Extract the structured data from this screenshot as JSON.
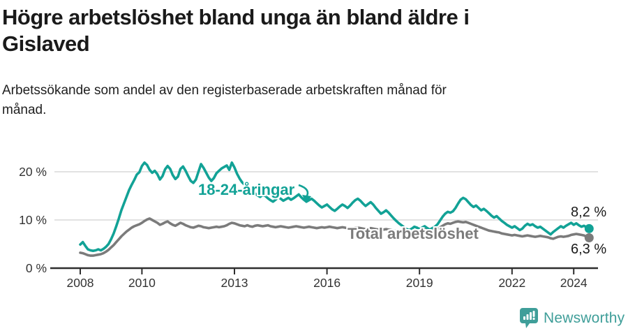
{
  "header": {
    "title_line1": "Högre arbetslöshet bland unga än bland äldre i",
    "title_line2": "Gislaved",
    "subtitle_line1": "Arbetssökande som andel av den registerbaserade arbetskraften månad för",
    "subtitle_line2": "månad."
  },
  "chart_data": {
    "type": "line",
    "title": "Högre arbetslöshet bland unga än bland äldre i Gislaved",
    "subtitle": "Arbetssökande som andel av den registerbaserade arbetskraften månad för månad.",
    "unit": "%",
    "x_start": "2008-01",
    "x_end": "2024-07",
    "x_frequency": "monthly",
    "x_tick_years": [
      2008,
      2010,
      2013,
      2016,
      2019,
      2022,
      2024
    ],
    "x_tick_labels": [
      "2008",
      "2010",
      "2013",
      "2016",
      "2019",
      "2022",
      "2024"
    ],
    "y_ticks": [
      {
        "value": 0,
        "label": "0 %"
      },
      {
        "value": 10,
        "label": "10 %"
      },
      {
        "value": 20,
        "label": "20 %"
      }
    ],
    "ylim": [
      0,
      23.5
    ],
    "grid": "horizontal",
    "legend_position": "inline-labels",
    "colors": {
      "young": "#12a296",
      "total": "#7b7b7b",
      "grid": "#d9d9d9",
      "axis": "#2e2e2e",
      "tick_text": "#333333"
    },
    "series": [
      {
        "name": "18-24-åringar",
        "inline_label": "18-24-åringar",
        "end_label": "8,2 %",
        "end_value": 8.2,
        "color": "#12a296",
        "values": [
          4.9,
          5.4,
          4.6,
          3.9,
          3.7,
          3.6,
          3.7,
          3.9,
          3.7,
          4.0,
          4.4,
          5.0,
          6.0,
          7.2,
          8.7,
          10.3,
          12.0,
          13.4,
          14.8,
          16.2,
          17.3,
          18.3,
          19.4,
          19.9,
          21.2,
          21.9,
          21.4,
          20.4,
          19.8,
          20.2,
          19.5,
          18.4,
          19.1,
          20.5,
          21.2,
          20.6,
          19.3,
          18.5,
          19.0,
          20.6,
          21.1,
          20.2,
          19.1,
          18.1,
          17.7,
          18.4,
          20.0,
          21.6,
          20.8,
          19.8,
          18.8,
          18.1,
          18.7,
          19.7,
          20.2,
          20.7,
          21.0,
          21.3,
          20.4,
          21.9,
          20.9,
          19.6,
          18.6,
          17.8,
          17.3,
          16.8,
          16.3,
          15.9,
          15.5,
          15.1,
          14.8,
          15.2,
          15.0,
          14.5,
          14.1,
          13.8,
          14.2,
          14.7,
          14.4,
          14.0,
          14.3,
          14.6,
          14.2,
          14.5,
          14.9,
          15.3,
          14.7,
          14.2,
          13.8,
          14.1,
          14.4,
          14.0,
          13.5,
          13.0,
          12.6,
          12.9,
          13.2,
          12.7,
          12.2,
          11.9,
          12.3,
          12.8,
          13.2,
          12.9,
          12.5,
          13.0,
          13.6,
          14.1,
          14.4,
          14.0,
          13.4,
          12.9,
          13.3,
          13.7,
          13.2,
          12.5,
          11.9,
          11.3,
          11.6,
          12.0,
          11.5,
          10.9,
          10.3,
          9.8,
          9.3,
          8.9,
          8.5,
          8.1,
          7.9,
          8.2,
          8.6,
          8.4,
          8.1,
          8.4,
          8.7,
          8.3,
          8.0,
          8.3,
          8.6,
          9.1,
          9.9,
          10.7,
          11.3,
          11.7,
          11.5,
          11.8,
          12.5,
          13.4,
          14.2,
          14.6,
          14.3,
          13.7,
          13.1,
          12.7,
          13.0,
          12.5,
          12.0,
          12.3,
          11.9,
          11.4,
          10.9,
          10.5,
          10.8,
          10.3,
          9.8,
          9.4,
          9.0,
          8.7,
          8.4,
          8.7,
          8.3,
          7.9,
          8.2,
          8.8,
          9.2,
          8.9,
          9.1,
          8.7,
          8.4,
          8.6,
          8.2,
          7.8,
          7.4,
          7.0,
          7.5,
          7.9,
          8.3,
          8.7,
          8.4,
          8.8,
          9.1,
          9.4,
          9.0,
          9.3,
          8.9,
          8.6,
          8.8,
          8.5,
          8.2
        ]
      },
      {
        "name": "Total arbetslöshet",
        "inline_label": "Total arbetslöshet",
        "end_label": "6,3 %",
        "end_value": 6.3,
        "color": "#7b7b7b",
        "values": [
          3.2,
          3.1,
          2.9,
          2.7,
          2.6,
          2.6,
          2.7,
          2.8,
          2.9,
          3.1,
          3.4,
          3.8,
          4.3,
          4.8,
          5.4,
          6.0,
          6.6,
          7.1,
          7.6,
          8.0,
          8.4,
          8.7,
          8.9,
          9.1,
          9.4,
          9.8,
          10.1,
          10.3,
          10.0,
          9.7,
          9.4,
          9.0,
          9.2,
          9.5,
          9.7,
          9.3,
          9.0,
          8.8,
          9.1,
          9.4,
          9.2,
          8.9,
          8.7,
          8.5,
          8.4,
          8.6,
          8.8,
          8.7,
          8.5,
          8.4,
          8.3,
          8.4,
          8.5,
          8.6,
          8.5,
          8.6,
          8.7,
          8.9,
          9.2,
          9.4,
          9.3,
          9.1,
          8.9,
          8.8,
          8.7,
          8.9,
          8.7,
          8.6,
          8.8,
          8.9,
          8.8,
          8.7,
          8.8,
          8.9,
          8.7,
          8.6,
          8.5,
          8.6,
          8.7,
          8.6,
          8.5,
          8.4,
          8.5,
          8.6,
          8.7,
          8.6,
          8.5,
          8.4,
          8.5,
          8.6,
          8.5,
          8.4,
          8.3,
          8.4,
          8.5,
          8.4,
          8.5,
          8.6,
          8.5,
          8.4,
          8.3,
          8.4,
          8.5,
          8.4,
          8.3,
          8.2,
          8.3,
          8.4,
          8.4,
          8.3,
          8.2,
          8.1,
          8.2,
          8.3,
          8.2,
          8.1,
          8.0,
          7.9,
          8.0,
          8.1,
          8.0,
          7.9,
          7.8,
          7.7,
          7.6,
          7.7,
          7.8,
          7.7,
          7.6,
          7.7,
          7.8,
          7.9,
          7.8,
          7.9,
          8.0,
          7.9,
          7.8,
          7.9,
          8.0,
          8.2,
          8.5,
          8.8,
          9.1,
          9.3,
          9.2,
          9.4,
          9.6,
          9.7,
          9.6,
          9.5,
          9.6,
          9.4,
          9.2,
          9.0,
          8.8,
          8.6,
          8.4,
          8.2,
          8.0,
          7.8,
          7.7,
          7.6,
          7.5,
          7.4,
          7.2,
          7.1,
          7.0,
          6.9,
          6.8,
          6.9,
          6.8,
          6.7,
          6.6,
          6.7,
          6.8,
          6.7,
          6.6,
          6.5,
          6.6,
          6.7,
          6.6,
          6.5,
          6.4,
          6.2,
          6.1,
          6.3,
          6.5,
          6.6,
          6.5,
          6.6,
          6.7,
          6.9,
          7.0,
          7.1,
          7.0,
          6.9,
          6.8,
          6.5,
          6.3
        ]
      }
    ]
  },
  "branding": {
    "logo_text": "Newsworthy",
    "logo_icon": "newsworthy-bubble-chart-icon",
    "color": "#3f9e99"
  }
}
